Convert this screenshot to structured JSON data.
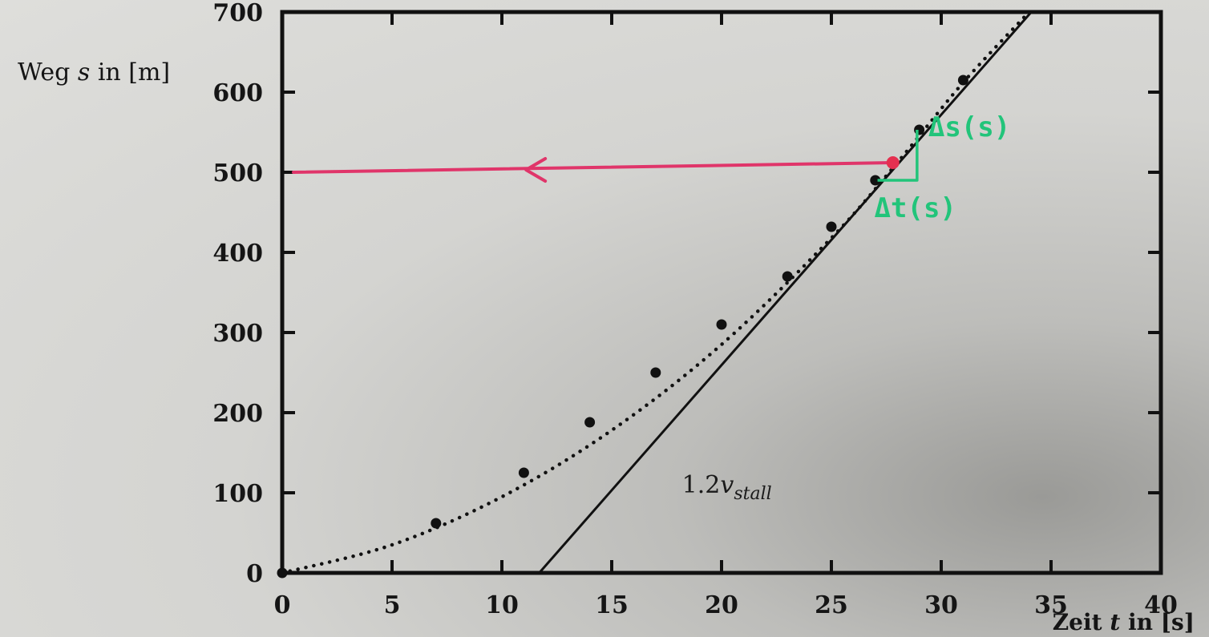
{
  "chart_data": {
    "type": "scatter",
    "xlabel_prefix": "Zeit ",
    "xlabel_var": "t",
    "xlabel_suffix": " in [s]",
    "ylabel_prefix": "Weg ",
    "ylabel_var": "s",
    "ylabel_suffix": " in [m]",
    "xlim": [
      0,
      40
    ],
    "ylim": [
      0,
      700
    ],
    "x_ticks": [
      0,
      5,
      10,
      15,
      20,
      25,
      30,
      35,
      40
    ],
    "y_ticks": [
      0,
      100,
      200,
      300,
      400,
      500,
      600,
      700
    ],
    "grid": false,
    "series": [
      {
        "kind": "points",
        "color": "#111111",
        "x": [
          0,
          7,
          11,
          14,
          17,
          20,
          23,
          25,
          27,
          29,
          31
        ],
        "y": [
          0,
          62,
          125,
          188,
          250,
          310,
          370,
          432,
          490,
          553,
          615
        ]
      },
      {
        "kind": "dotted-fit",
        "color": "#111111",
        "x": [
          0,
          5,
          10,
          15,
          20,
          25,
          28,
          31,
          34
        ],
        "y": [
          0,
          35,
          95,
          178,
          285,
          418,
          512,
          612,
          700
        ]
      },
      {
        "kind": "solid-line",
        "name": "1.2v_stall",
        "color": "#111111",
        "x": [
          11.7,
          34.1
        ],
        "y": [
          0,
          700
        ]
      }
    ],
    "curve_label": {
      "base": "1.2",
      "var": "v",
      "sub": "stall",
      "at_x": 18.2,
      "at_y": 100
    },
    "annotations": {
      "red_point": {
        "x": 27.8,
        "y": 512,
        "color": "#e53050"
      },
      "red_arrow": {
        "from_x": 27.8,
        "from_y": 512,
        "to_x": 0,
        "to_y": 500,
        "color": "#e0356a"
      },
      "green_triangle": {
        "x0": 27.1,
        "x1": 28.9,
        "y0": 490,
        "y1": 553,
        "color": "#22c47a"
      },
      "delta_s_label": "Δs(s)",
      "delta_t_label": "Δt(s)"
    }
  }
}
